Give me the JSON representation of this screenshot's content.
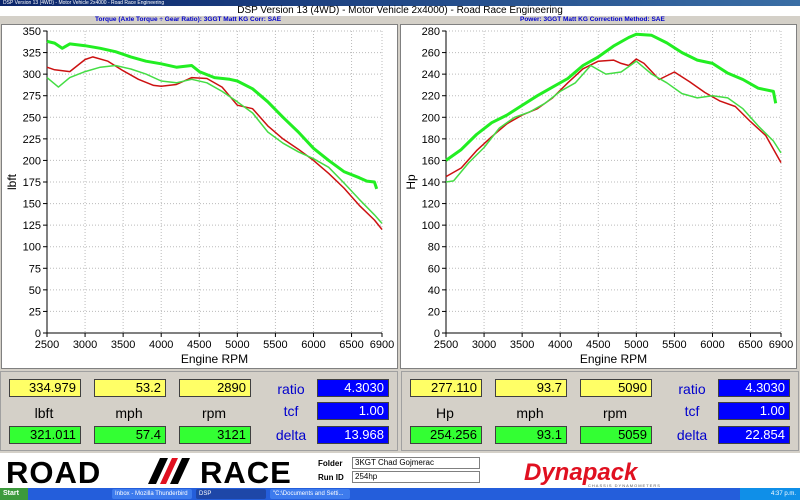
{
  "window": {
    "title": "DSP Version 13 (4WD) - Motor Vehicle 2x4000 - Road Race Engineering",
    "header": "DSP Version 13 (4WD) - Motor Vehicle 2x4000) - Road Race Engineering",
    "left_subheader": "Torque (Axle Torque ÷ Gear Ratio): 3GGT Matt KG      Corr: SAE",
    "right_subheader": "Power: 3GGT Matt KG      Correction Method: SAE"
  },
  "colors": {
    "bright_green": "#22ee22",
    "dark_red": "#cc1111",
    "light_green": "#44dd44",
    "yellow_box": "#ffff66",
    "green_box": "#33ff33",
    "blue_box": "#0000ff",
    "label_blue": "#0000cc"
  },
  "chart_data": [
    {
      "type": "line",
      "xlabel": "Engine RPM",
      "ylabel": "lbft",
      "xlim": [
        2500,
        6900
      ],
      "ylim": [
        0,
        350
      ],
      "xticks": [
        "2500",
        "3000",
        "3500",
        "4000",
        "4500",
        "5000",
        "5500",
        "6000",
        "6500",
        "6900"
      ],
      "yticks": [
        "0",
        "25",
        "50",
        "75",
        "100",
        "125",
        "150",
        "175",
        "200",
        "225",
        "250",
        "275",
        "300",
        "325",
        "350"
      ],
      "grid": true,
      "series": [
        {
          "color": "#22ee22",
          "width": 3,
          "points": [
            [
              2500,
              338
            ],
            [
              2600,
              336
            ],
            [
              2700,
              330
            ],
            [
              2800,
              335
            ],
            [
              3000,
              333
            ],
            [
              3200,
              330
            ],
            [
              3400,
              326
            ],
            [
              3600,
              320
            ],
            [
              3800,
              315
            ],
            [
              4000,
              312
            ],
            [
              4200,
              308
            ],
            [
              4400,
              310
            ],
            [
              4500,
              303
            ],
            [
              4700,
              296
            ],
            [
              4900,
              294
            ],
            [
              5000,
              292
            ],
            [
              5200,
              283
            ],
            [
              5400,
              268
            ],
            [
              5600,
              250
            ],
            [
              5800,
              233
            ],
            [
              6000,
              214
            ],
            [
              6200,
              200
            ],
            [
              6400,
              187
            ],
            [
              6600,
              180
            ],
            [
              6700,
              176
            ],
            [
              6800,
              175
            ],
            [
              6830,
              167
            ]
          ]
        },
        {
          "color": "#cc1111",
          "width": 1.5,
          "points": [
            [
              2500,
              308
            ],
            [
              2600,
              305
            ],
            [
              2800,
              303
            ],
            [
              3000,
              317
            ],
            [
              3100,
              320
            ],
            [
              3300,
              315
            ],
            [
              3500,
              304
            ],
            [
              3700,
              294
            ],
            [
              3900,
              287
            ],
            [
              4000,
              286
            ],
            [
              4200,
              288
            ],
            [
              4400,
              296
            ],
            [
              4600,
              295
            ],
            [
              4800,
              285
            ],
            [
              5000,
              264
            ],
            [
              5200,
              260
            ],
            [
              5400,
              240
            ],
            [
              5600,
              225
            ],
            [
              5800,
              213
            ],
            [
              6000,
              200
            ],
            [
              6200,
              185
            ],
            [
              6400,
              168
            ],
            [
              6600,
              148
            ],
            [
              6800,
              131
            ],
            [
              6900,
              120
            ]
          ]
        },
        {
          "color": "#44dd44",
          "width": 1.5,
          "points": [
            [
              2500,
              296
            ],
            [
              2650,
              285
            ],
            [
              2800,
              296
            ],
            [
              3000,
              303
            ],
            [
              3200,
              308
            ],
            [
              3400,
              310
            ],
            [
              3600,
              306
            ],
            [
              3800,
              300
            ],
            [
              4000,
              292
            ],
            [
              4200,
              290
            ],
            [
              4400,
              294
            ],
            [
              4600,
              290
            ],
            [
              4800,
              280
            ],
            [
              5000,
              268
            ],
            [
              5200,
              255
            ],
            [
              5400,
              233
            ],
            [
              5600,
              220
            ],
            [
              5800,
              210
            ],
            [
              6000,
              202
            ],
            [
              6200,
              192
            ],
            [
              6400,
              174
            ],
            [
              6600,
              155
            ],
            [
              6800,
              137
            ],
            [
              6900,
              127
            ]
          ]
        }
      ]
    },
    {
      "type": "line",
      "xlabel": "Engine RPM",
      "ylabel": "Hp",
      "xlim": [
        2500,
        6900
      ],
      "ylim": [
        0,
        280
      ],
      "xticks": [
        "2500",
        "3000",
        "3500",
        "4000",
        "4500",
        "5000",
        "5500",
        "6000",
        "6500",
        "6900"
      ],
      "yticks": [
        "0",
        "20",
        "40",
        "60",
        "80",
        "100",
        "120",
        "140",
        "160",
        "180",
        "200",
        "220",
        "240",
        "260",
        "280"
      ],
      "grid": true,
      "series": [
        {
          "color": "#22ee22",
          "width": 3,
          "points": [
            [
              2500,
              160
            ],
            [
              2700,
              170
            ],
            [
              2900,
              184
            ],
            [
              3100,
              195
            ],
            [
              3300,
              202
            ],
            [
              3500,
              211
            ],
            [
              3700,
              220
            ],
            [
              3900,
              228
            ],
            [
              4100,
              236
            ],
            [
              4300,
              248
            ],
            [
              4500,
              256
            ],
            [
              4700,
              266
            ],
            [
              4900,
              274
            ],
            [
              5000,
              277
            ],
            [
              5200,
              276
            ],
            [
              5400,
              269
            ],
            [
              5600,
              260
            ],
            [
              5800,
              253
            ],
            [
              6000,
              250
            ],
            [
              6200,
              241
            ],
            [
              6400,
              235
            ],
            [
              6600,
              227
            ],
            [
              6800,
              224
            ],
            [
              6830,
              213
            ]
          ]
        },
        {
          "color": "#cc1111",
          "width": 1.5,
          "points": [
            [
              2500,
              145
            ],
            [
              2700,
              153
            ],
            [
              2900,
              169
            ],
            [
              3100,
              182
            ],
            [
              3300,
              194
            ],
            [
              3500,
              202
            ],
            [
              3700,
              208
            ],
            [
              3900,
              218
            ],
            [
              4100,
              232
            ],
            [
              4300,
              245
            ],
            [
              4500,
              252
            ],
            [
              4700,
              253
            ],
            [
              4800,
              250
            ],
            [
              4900,
              248
            ],
            [
              5000,
              254
            ],
            [
              5100,
              250
            ],
            [
              5300,
              235
            ],
            [
              5500,
              242
            ],
            [
              5700,
              233
            ],
            [
              5900,
              223
            ],
            [
              6100,
              215
            ],
            [
              6300,
              210
            ],
            [
              6500,
              196
            ],
            [
              6700,
              183
            ],
            [
              6900,
              158
            ]
          ]
        },
        {
          "color": "#44dd44",
          "width": 1.5,
          "points": [
            [
              2500,
              140
            ],
            [
              2600,
              141
            ],
            [
              2800,
              158
            ],
            [
              3000,
              172
            ],
            [
              3200,
              190
            ],
            [
              3400,
              200
            ],
            [
              3600,
              205
            ],
            [
              3800,
              213
            ],
            [
              4000,
              224
            ],
            [
              4200,
              232
            ],
            [
              4400,
              248
            ],
            [
              4600,
              240
            ],
            [
              4800,
              242
            ],
            [
              5000,
              252
            ],
            [
              5200,
              240
            ],
            [
              5400,
              232
            ],
            [
              5600,
              222
            ],
            [
              5800,
              218
            ],
            [
              6000,
              220
            ],
            [
              6200,
              218
            ],
            [
              6400,
              208
            ],
            [
              6600,
              192
            ],
            [
              6800,
              178
            ],
            [
              6900,
              167
            ]
          ]
        }
      ]
    }
  ],
  "readout_torque": {
    "r1": [
      "334.979",
      "53.2",
      "2890"
    ],
    "units": [
      "lbft",
      "mph",
      "rpm"
    ],
    "r3": [
      "321.011",
      "57.4",
      "3121"
    ],
    "params": [
      "ratio",
      "tcf",
      "delta"
    ],
    "param_values": [
      "4.3030",
      "1.00",
      "13.968"
    ]
  },
  "readout_power": {
    "r1": [
      "277.110",
      "93.7",
      "5090"
    ],
    "units": [
      "Hp",
      "mph",
      "rpm"
    ],
    "r3": [
      "254.256",
      "93.1",
      "5059"
    ],
    "params": [
      "ratio",
      "tcf",
      "delta"
    ],
    "param_values": [
      "4.3030",
      "1.00",
      "22.854"
    ]
  },
  "footer": {
    "logo_left": "ROAD",
    "logo_right": "RACE",
    "folder_label": "Folder",
    "folder_value": "3KGT Chad Gojmerac",
    "runid_label": "Run ID",
    "runid_value": "254hp",
    "brand": "Dynapack",
    "brand_sub": "CHASSIS DYNAMOMETERS"
  },
  "taskbar": {
    "start": "Start",
    "tasks": [
      "Inbox - Mozilla Thunderbird",
      "DSP",
      "\"C:\\Documents and Setti..."
    ],
    "clock": "4:37 p.m."
  }
}
